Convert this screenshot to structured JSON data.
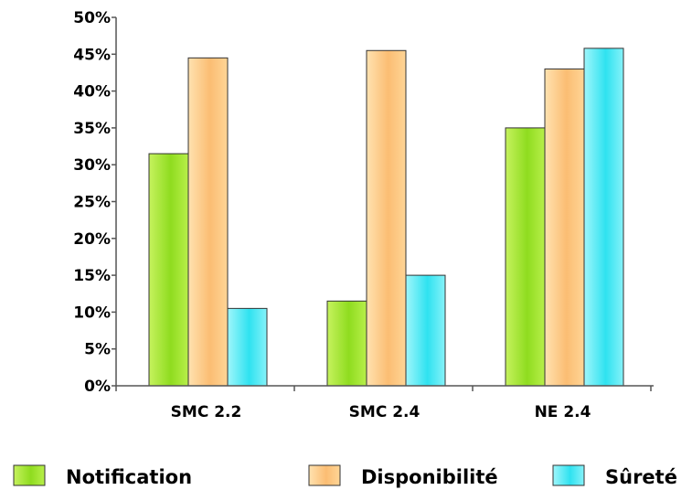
{
  "chart_data": {
    "type": "bar",
    "title": "",
    "xlabel": "",
    "ylabel": "",
    "categories": [
      "SMC 2.2",
      "SMC 2.4",
      "NE 2.4"
    ],
    "series": [
      {
        "name": "Notification",
        "values": [
          31.5,
          11.5,
          35.0
        ],
        "color": "#9be030"
      },
      {
        "name": "Disponibilité",
        "values": [
          44.5,
          45.5,
          43.0
        ],
        "color": "#fcc47c"
      },
      {
        "name": "Sûreté",
        "values": [
          10.5,
          15.0,
          45.8
        ],
        "color": "#3fe6f2"
      }
    ],
    "ylim": [
      0,
      50
    ],
    "yticks": [
      "0%",
      "5%",
      "10%",
      "15%",
      "20%",
      "25%",
      "30%",
      "35%",
      "40%",
      "45%",
      "50%"
    ],
    "grid": false,
    "legend_position": "bottom"
  }
}
